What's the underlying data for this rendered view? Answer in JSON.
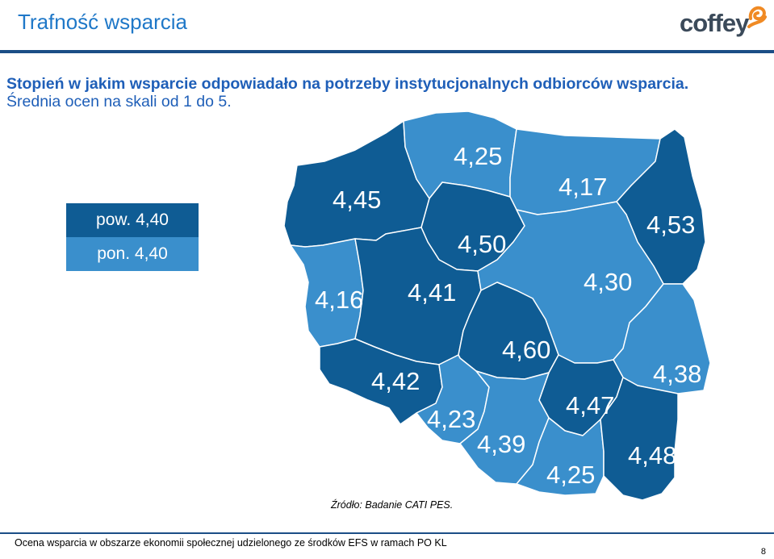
{
  "header": {
    "title": "Trafność wsparcia",
    "logo_text": "coffey"
  },
  "subtitle": {
    "line1": "Stopień w jakim wsparcie odpowiadało na potrzeby instytucjonalnych odbiorców wsparcia.",
    "line2": "Średnia ocen na skali od 1 do 5."
  },
  "legend": {
    "pow": "pow. 4,40",
    "pon": "pon. 4,40"
  },
  "colors": {
    "above": "#0f5c94",
    "below": "#3a8fcc",
    "accent": "#1f78c8",
    "logo_orange": "#f08a24"
  },
  "regions": [
    {
      "id": "zachodniopomorskie",
      "value": "4,45",
      "category": "above"
    },
    {
      "id": "pomorskie",
      "value": "4,25",
      "category": "below"
    },
    {
      "id": "warminsko-mazurskie",
      "value": "4,17",
      "category": "below"
    },
    {
      "id": "podlaskie",
      "value": "4,53",
      "category": "above"
    },
    {
      "id": "kujawsko-pomorskie",
      "value": "4,50",
      "category": "above"
    },
    {
      "id": "lubuskie",
      "value": "4,16",
      "category": "below"
    },
    {
      "id": "wielkopolskie",
      "value": "4,41",
      "category": "above"
    },
    {
      "id": "mazowieckie",
      "value": "4,30",
      "category": "below"
    },
    {
      "id": "lodzkie",
      "value": "4,60",
      "category": "above"
    },
    {
      "id": "dolnoslaskie",
      "value": "4,42",
      "category": "above"
    },
    {
      "id": "lubelskie",
      "value": "4,38",
      "category": "below"
    },
    {
      "id": "swietokrzyskie",
      "value": "4,47",
      "category": "above"
    },
    {
      "id": "opolskie",
      "value": "4,23",
      "category": "below"
    },
    {
      "id": "slaskie",
      "value": "4,39",
      "category": "below"
    },
    {
      "id": "malopolskie",
      "value": "4,25",
      "category": "below"
    },
    {
      "id": "podkarpackie",
      "value": "4,48",
      "category": "above"
    }
  ],
  "source": "Źródło: Badanie CATI PES.",
  "footer": {
    "text": "Ocena wsparcia w obszarze ekonomii społecznej udzielonego ze środków EFS w ramach PO KL",
    "page": "8"
  }
}
